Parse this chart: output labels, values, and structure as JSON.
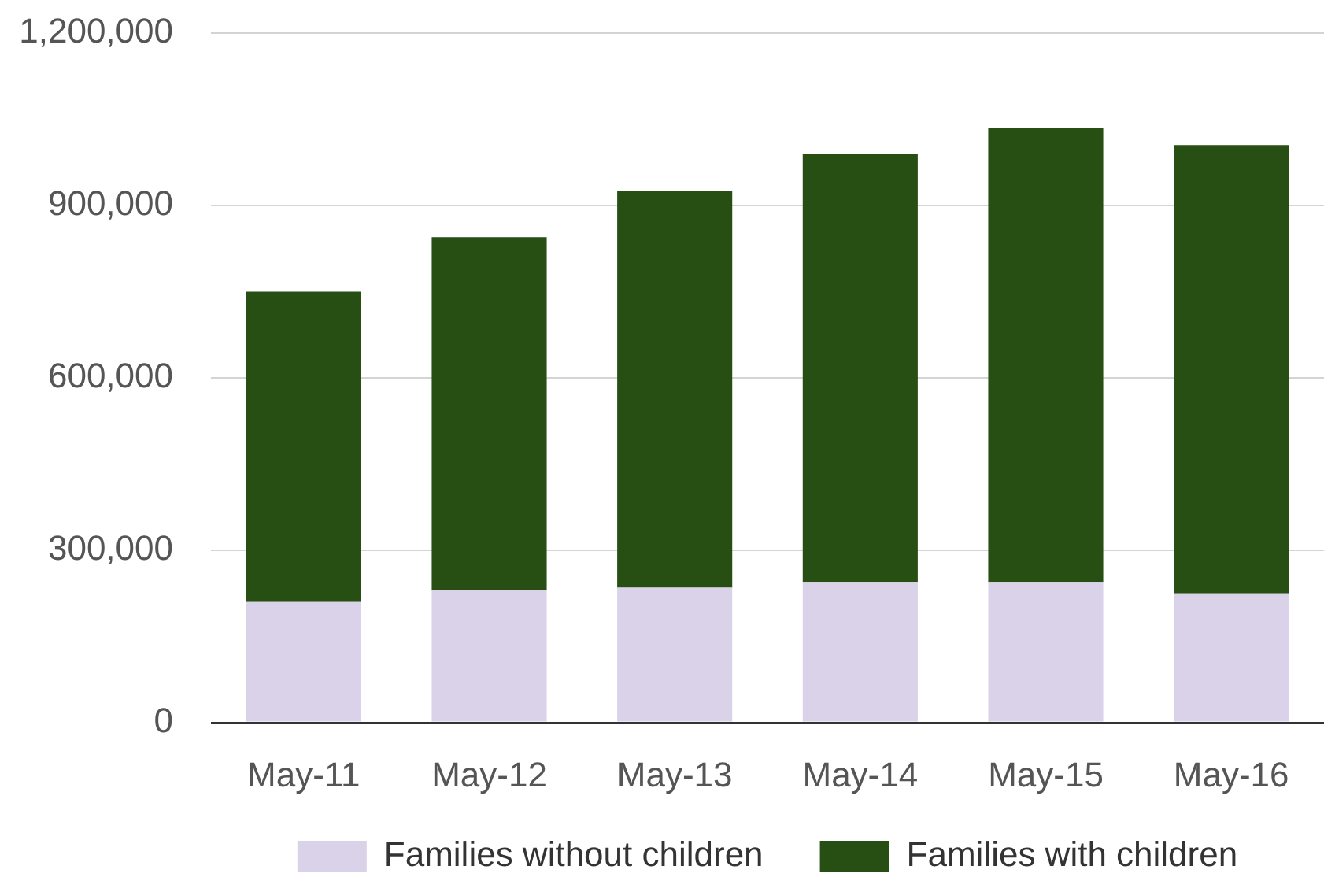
{
  "chart_data": {
    "type": "bar",
    "stacked": true,
    "categories": [
      "May-11",
      "May-12",
      "May-13",
      "May-14",
      "May-15",
      "May-16"
    ],
    "series": [
      {
        "name": "Families without children",
        "color": "#d9d2e9",
        "values": [
          210000,
          230000,
          235000,
          245000,
          245000,
          225000
        ]
      },
      {
        "name": "Families with children",
        "color": "#274e13",
        "values": [
          540000,
          615000,
          690000,
          745000,
          790000,
          780000
        ]
      }
    ],
    "ylim": [
      0,
      1200000
    ],
    "yticks": [
      0,
      {
        "value": 300000,
        "label": "300,000"
      },
      {
        "value": 600000,
        "label": "600,000"
      },
      {
        "value": 900000,
        "label": "900,000"
      },
      {
        "value": 1200000,
        "label": "1,200,000"
      }
    ],
    "grid": "y",
    "legend": "bottom"
  }
}
